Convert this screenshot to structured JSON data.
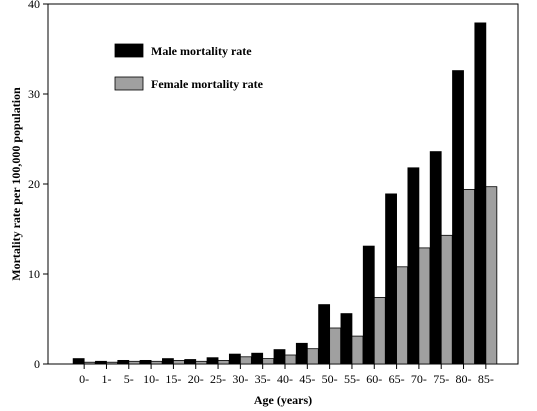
{
  "chart_data": {
    "type": "bar",
    "xlabel": "Age (years)",
    "ylabel": "Mortality rate per 100,000 population",
    "ylim": [
      0,
      40
    ],
    "yticks": [
      0,
      10,
      20,
      30,
      40
    ],
    "grid": false,
    "legend_position": "top-left",
    "categories": [
      "0-",
      "1-",
      "5-",
      "10-",
      "15-",
      "20-",
      "25-",
      "30-",
      "35-",
      "40-",
      "45-",
      "50-",
      "55-",
      "60-",
      "65-",
      "70-",
      "75-",
      "80-",
      "85-"
    ],
    "series": [
      {
        "name": "Male mortality rate",
        "color": "#000000",
        "values": [
          0.6,
          0.3,
          0.4,
          0.4,
          0.6,
          0.5,
          0.7,
          1.1,
          1.2,
          1.6,
          2.3,
          6.6,
          5.6,
          13.1,
          18.9,
          21.8,
          23.6,
          32.6,
          37.9
        ]
      },
      {
        "name": "Female mortality rate",
        "color": "#a0a0a0",
        "values": [
          0.2,
          0.2,
          0.3,
          0.3,
          0.4,
          0.3,
          0.4,
          0.8,
          0.6,
          1.0,
          1.7,
          4.0,
          3.1,
          7.4,
          10.8,
          12.9,
          14.3,
          19.4,
          19.7
        ]
      }
    ]
  }
}
